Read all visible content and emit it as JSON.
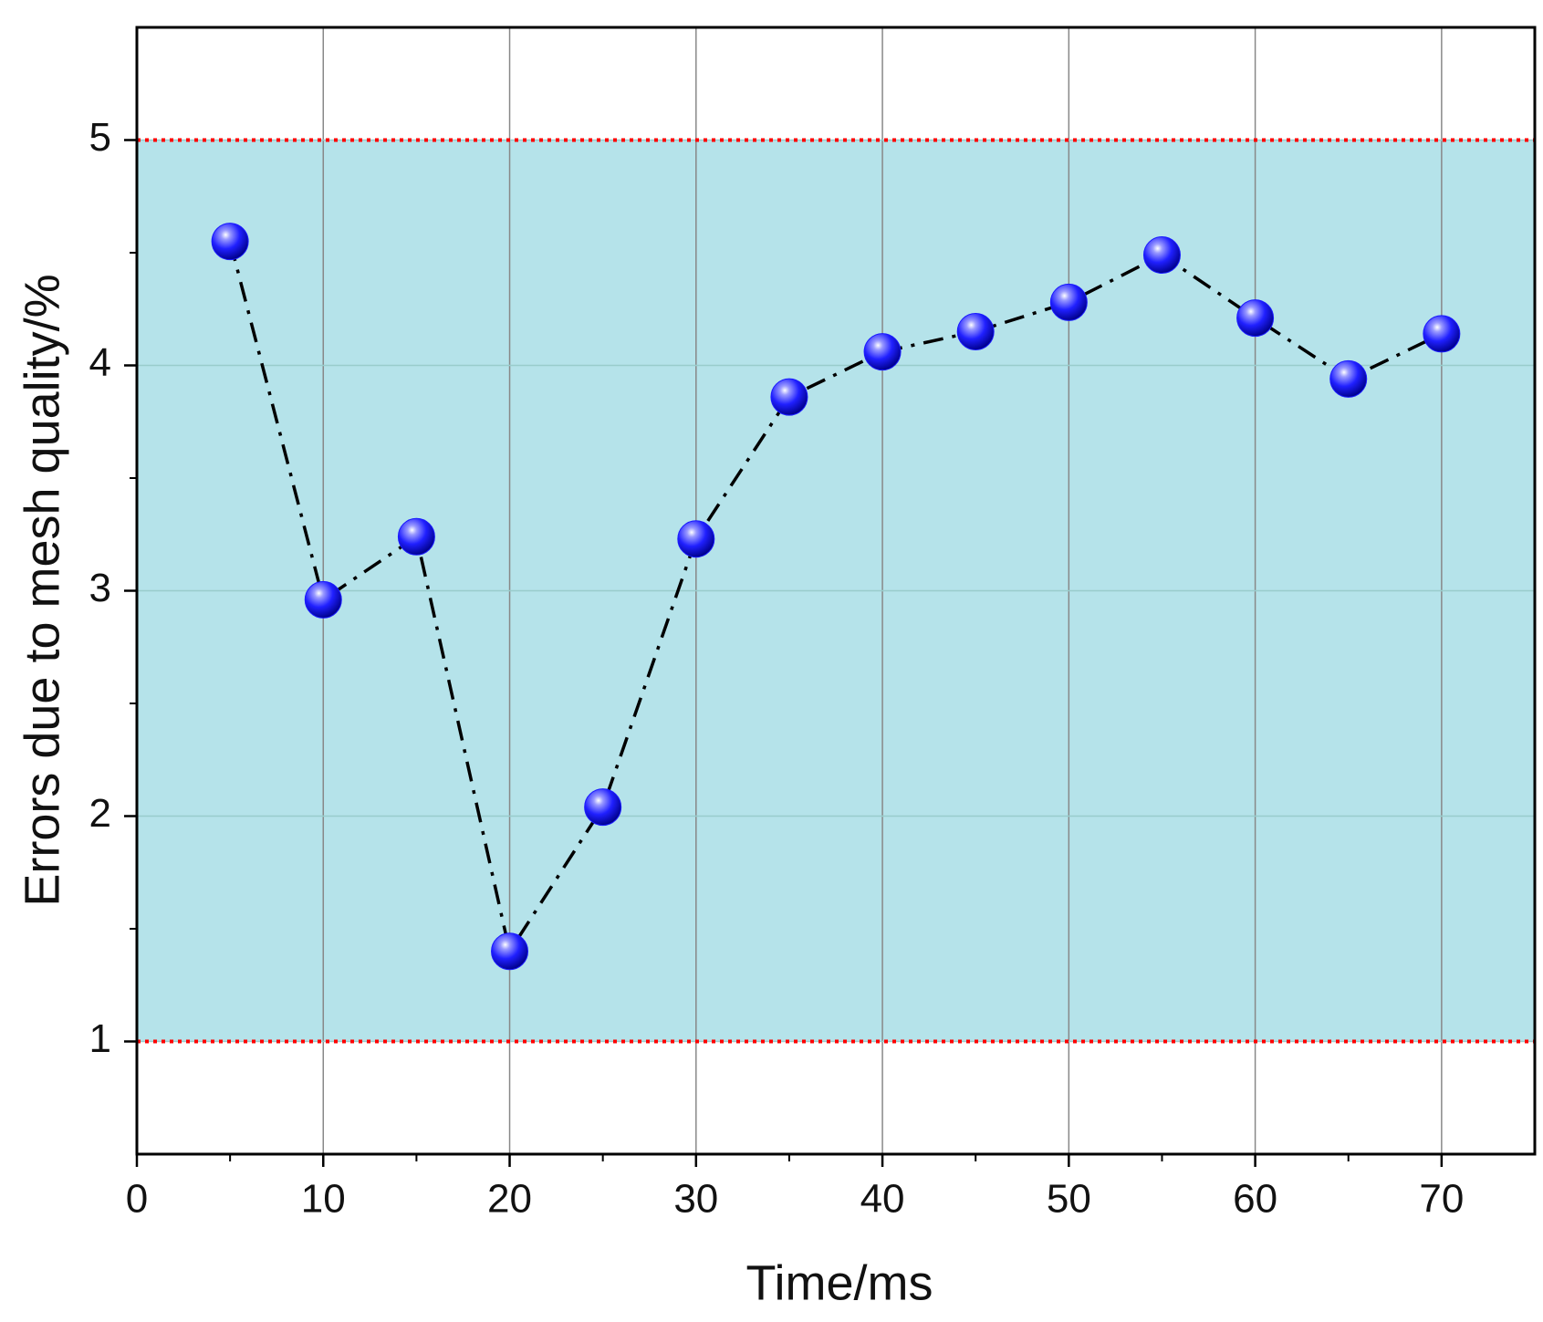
{
  "chart_data": {
    "type": "line",
    "x_label": "Time/ms",
    "y_label": "Errors due to mesh quality/%",
    "x": [
      5,
      10,
      15,
      20,
      25,
      30,
      35,
      40,
      45,
      50,
      55,
      60,
      65,
      70
    ],
    "series": [
      {
        "color": "#1a1aff",
        "values": [
          4.55,
          2.96,
          3.24,
          1.4,
          2.04,
          3.23,
          3.86,
          4.06,
          4.15,
          4.28,
          4.49,
          4.21,
          3.94,
          4.14
        ]
      }
    ],
    "xlim": [
      0,
      75
    ],
    "xticks": [
      0,
      10,
      20,
      30,
      40,
      50,
      60,
      70
    ],
    "ylim": [
      0.5,
      5.5
    ],
    "yticks": [
      1,
      2,
      3,
      4,
      5
    ],
    "reference_lines": [
      1,
      5
    ],
    "reference_color": "#ff0000",
    "band_color": "#b5e3ea",
    "grid": true
  }
}
